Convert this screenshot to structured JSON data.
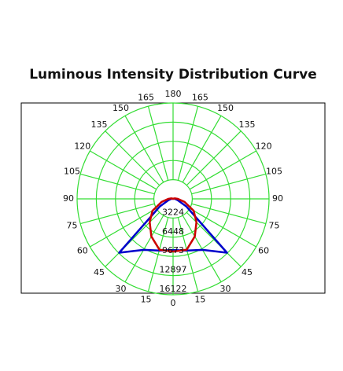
{
  "chart_data": {
    "type": "polar",
    "title": "Luminous Intensity Distribution Curve",
    "x": [
      0,
      15,
      30,
      45,
      60,
      75,
      90,
      105,
      120,
      135,
      150,
      165,
      180
    ],
    "angle_ticks": [
      0,
      15,
      30,
      45,
      60,
      75,
      90,
      105,
      120,
      135,
      150,
      165,
      180
    ],
    "rlim": [
      0,
      16122
    ],
    "rticks": [
      3224,
      6448,
      9673,
      12897,
      16122
    ],
    "grid_color": "#33dd33",
    "series": [
      {
        "color": "#0000cc",
        "values": [
          8600,
          9000,
          9900,
          12800,
          2600,
          800,
          300,
          100,
          0,
          0,
          0,
          0,
          0
        ]
      },
      {
        "color": "#cc0000",
        "values": [
          8850,
          8850,
          7300,
          5550,
          4000,
          2000,
          800,
          300,
          100,
          0,
          0,
          0,
          0
        ]
      }
    ]
  }
}
